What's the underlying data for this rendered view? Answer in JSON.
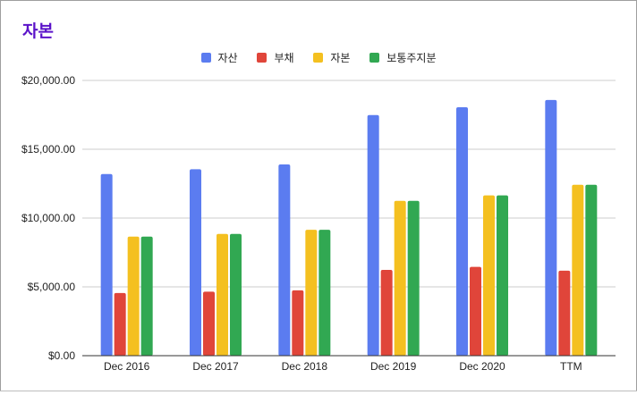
{
  "title": "자본",
  "colors": {
    "title": "#5b13c9",
    "series": [
      "#5b7cf0",
      "#e0453a",
      "#f4c020",
      "#31a852"
    ],
    "grid": "#cccccc",
    "axis": "#333333"
  },
  "chart_data": {
    "type": "bar",
    "title": "자본",
    "categories": [
      "Dec 2016",
      "Dec 2017",
      "Dec 2018",
      "Dec 2019",
      "Dec 2020",
      "TTM"
    ],
    "series": [
      {
        "name": "자산",
        "values": [
          13200,
          13550,
          13900,
          17480,
          18050,
          18580
        ]
      },
      {
        "name": "부채",
        "values": [
          4550,
          4650,
          4750,
          6230,
          6450,
          6180
        ]
      },
      {
        "name": "자본",
        "values": [
          8650,
          8850,
          9150,
          11250,
          11650,
          12420
        ]
      },
      {
        "name": "보통주지분",
        "values": [
          8650,
          8850,
          9150,
          11250,
          11650,
          12420
        ]
      }
    ],
    "y_ticks": [
      "$0.00",
      "$5,000.00",
      "$10,000.00",
      "$15,000.00",
      "$20,000.00"
    ],
    "ylim": [
      0,
      20000
    ],
    "legend_position": "top",
    "grid": true
  }
}
